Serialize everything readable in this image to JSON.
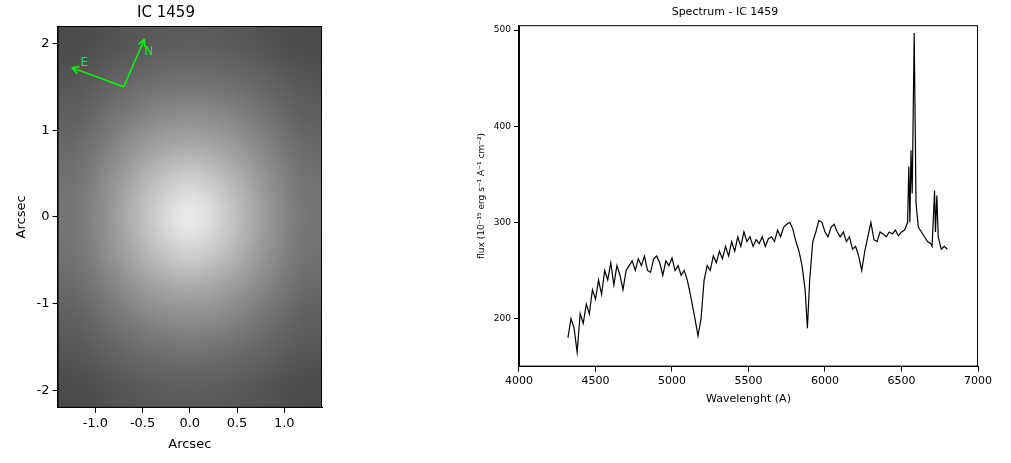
{
  "chart_data": [
    {
      "type": "image",
      "title": "IC 1459",
      "x_label": "Arcsec",
      "y_label": "Arcsec",
      "xlim": [
        -1.4,
        1.4
      ],
      "ylim": [
        -2.2,
        2.2
      ],
      "xticks": [
        {
          "value": -1,
          "label": "-1.0"
        },
        {
          "value": -0.5,
          "label": "-0.5"
        },
        {
          "value": 0,
          "label": "0.0"
        },
        {
          "value": 0.5,
          "label": "0.5"
        },
        {
          "value": 1,
          "label": "1.0"
        }
      ],
      "yticks": [
        -2,
        -1,
        0,
        1,
        2
      ],
      "grid": false,
      "x": [
        -1.2,
        -0.8,
        -0.4,
        0,
        0.4,
        0.8,
        1.2
      ],
      "y": [
        2.0,
        1.6,
        1.2,
        0.8,
        0.4,
        0,
        -0.4,
        -0.8,
        -1.2,
        -1.6,
        -2.0
      ],
      "cells": [
        [
          75,
          83,
          90,
          92,
          90,
          83,
          75
        ],
        [
          85,
          97,
          107,
          112,
          107,
          97,
          85
        ],
        [
          95,
          114,
          132,
          139,
          132,
          114,
          95
        ],
        [
          106,
          133,
          160,
          172,
          160,
          133,
          106
        ],
        [
          115,
          149,
          189,
          212,
          189,
          149,
          115
        ],
        [
          118,
          155,
          203,
          240,
          203,
          155,
          118
        ],
        [
          115,
          149,
          189,
          212,
          189,
          149,
          115
        ],
        [
          106,
          133,
          160,
          172,
          160,
          133,
          106
        ],
        [
          95,
          114,
          132,
          139,
          132,
          114,
          95
        ],
        [
          85,
          97,
          107,
          112,
          107,
          97,
          85
        ],
        [
          75,
          83,
          90,
          92,
          90,
          83,
          75
        ]
      ],
      "color_range": [
        0,
        255
      ],
      "annotations": [
        {
          "text": "N",
          "from": [
            -0.7,
            1.5
          ],
          "to": [
            -0.48,
            2.05
          ],
          "color": "#00ff00"
        },
        {
          "text": "E",
          "from": [
            -0.7,
            1.5
          ],
          "to": [
            -1.25,
            1.72
          ],
          "color": "#00ff00"
        }
      ]
    },
    {
      "type": "line",
      "title": "Spectrum - IC 1459",
      "x_label": "Wavelenght (A)",
      "y_label": "flux (10⁻¹⁵ erg s⁻¹ A⁻¹ cm⁻²)",
      "xlim": [
        4000,
        7000
      ],
      "ylim": [
        150,
        505
      ],
      "xticks": [
        4000,
        4500,
        5000,
        5500,
        6000,
        6500,
        7000
      ],
      "yticks": [
        200,
        300,
        400,
        500
      ],
      "grid": false,
      "color": "#000000",
      "x": [
        4320,
        4340,
        4360,
        4380,
        4400,
        4420,
        4440,
        4460,
        4480,
        4500,
        4520,
        4540,
        4560,
        4580,
        4600,
        4620,
        4640,
        4660,
        4680,
        4700,
        4720,
        4740,
        4760,
        4780,
        4800,
        4820,
        4840,
        4860,
        4880,
        4900,
        4920,
        4940,
        4960,
        4980,
        5000,
        5020,
        5040,
        5060,
        5080,
        5100,
        5120,
        5150,
        5170,
        5190,
        5210,
        5230,
        5250,
        5270,
        5290,
        5310,
        5330,
        5350,
        5370,
        5390,
        5410,
        5430,
        5450,
        5470,
        5490,
        5510,
        5530,
        5550,
        5570,
        5590,
        5610,
        5630,
        5650,
        5670,
        5690,
        5710,
        5730,
        5750,
        5770,
        5790,
        5810,
        5830,
        5850,
        5870,
        5885,
        5900,
        5920,
        5940,
        5960,
        5980,
        6000,
        6020,
        6040,
        6060,
        6080,
        6100,
        6120,
        6140,
        6160,
        6180,
        6200,
        6220,
        6240,
        6260,
        6280,
        6300,
        6320,
        6340,
        6360,
        6380,
        6400,
        6420,
        6440,
        6460,
        6480,
        6500,
        6520,
        6540,
        6548,
        6555,
        6562,
        6570,
        6583,
        6595,
        6610,
        6630,
        6650,
        6670,
        6690,
        6700,
        6716,
        6722,
        6731,
        6740,
        6760,
        6780,
        6800
      ],
      "values": [
        180,
        200,
        190,
        165,
        205,
        195,
        215,
        205,
        230,
        220,
        240,
        225,
        250,
        240,
        258,
        235,
        255,
        245,
        230,
        250,
        255,
        260,
        250,
        262,
        255,
        265,
        250,
        248,
        262,
        265,
        258,
        245,
        260,
        255,
        263,
        250,
        255,
        245,
        250,
        240,
        225,
        200,
        182,
        200,
        240,
        255,
        250,
        265,
        258,
        270,
        262,
        275,
        265,
        280,
        270,
        285,
        275,
        290,
        280,
        285,
        275,
        282,
        278,
        285,
        275,
        283,
        285,
        280,
        292,
        285,
        295,
        298,
        300,
        293,
        280,
        270,
        255,
        230,
        190,
        240,
        280,
        290,
        302,
        300,
        290,
        285,
        295,
        298,
        290,
        285,
        290,
        280,
        285,
        272,
        275,
        265,
        250,
        270,
        285,
        300,
        282,
        280,
        290,
        288,
        285,
        290,
        288,
        292,
        286,
        290,
        292,
        300,
        358,
        300,
        375,
        330,
        497,
        320,
        295,
        290,
        285,
        280,
        278,
        275,
        333,
        290,
        328,
        285,
        272,
        275,
        272
      ]
    }
  ]
}
